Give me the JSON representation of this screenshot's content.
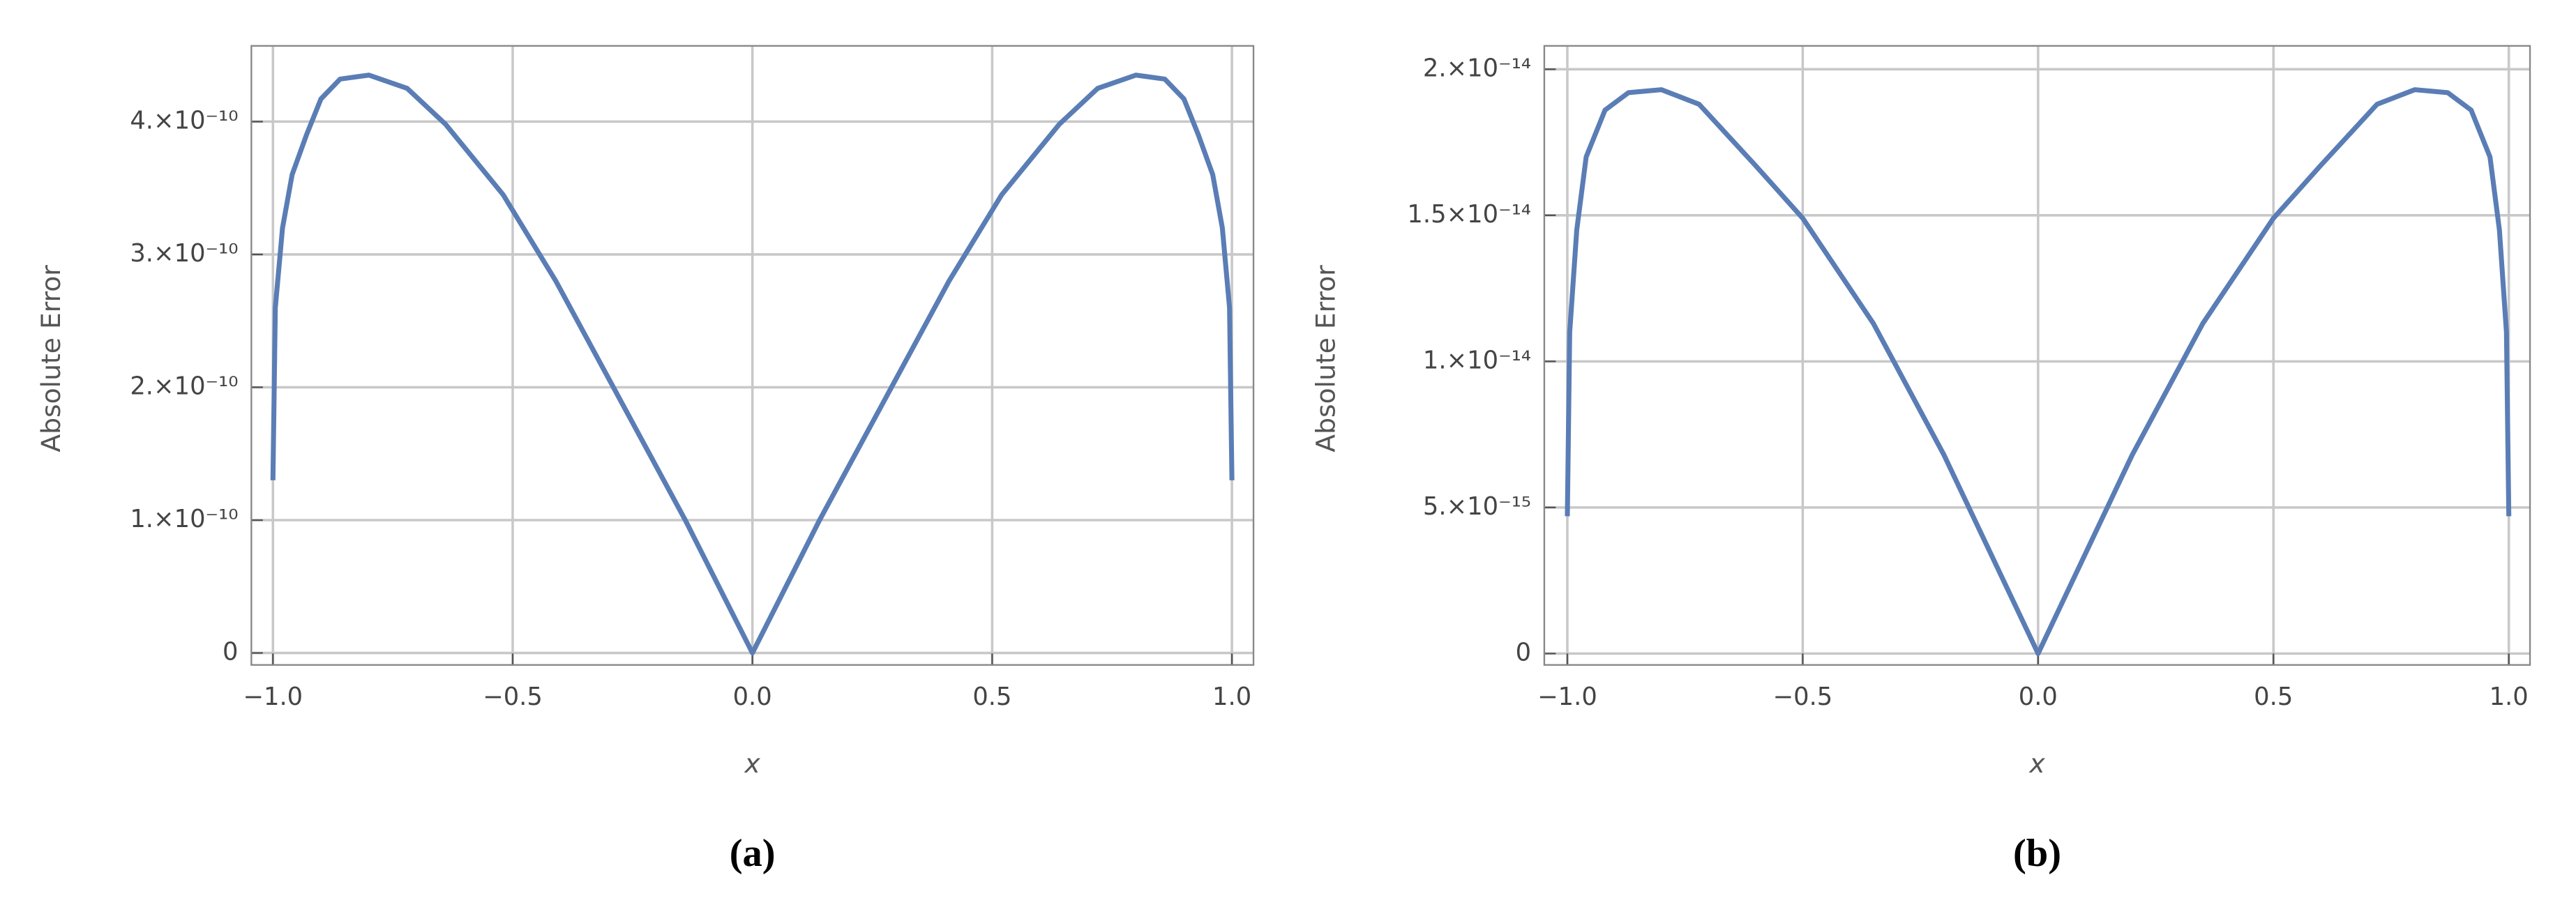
{
  "chart_data": [
    {
      "type": "line",
      "caption": "(a)",
      "ylabel": "Absolute Error",
      "xlabel": "x",
      "color": "#5a7db5",
      "grid": true,
      "xlim": [
        -1.045,
        1.045
      ],
      "ylim": [
        -9e-12,
        4.57e-10
      ],
      "xticks": [
        {
          "value": -1,
          "label": "−1.0"
        },
        {
          "value": -0.5,
          "label": "−0.5"
        },
        {
          "value": 0,
          "label": "0.0"
        },
        0.5,
        {
          "value": 1,
          "label": "1.0"
        }
      ],
      "yticks": [
        0,
        {
          "value": 1e-10,
          "label": "1.×10⁻¹⁰"
        },
        {
          "value": 2e-10,
          "label": "2.×10⁻¹⁰"
        },
        {
          "value": 3e-10,
          "label": "3.×10⁻¹⁰"
        },
        {
          "value": 4e-10,
          "label": "4.×10⁻¹⁰"
        }
      ],
      "x": [
        -1,
        -0.995,
        -0.98,
        -0.96,
        -0.93,
        -0.9,
        -0.86,
        -0.8,
        -0.72,
        -0.64,
        -0.52,
        -0.41,
        -0.29,
        -0.14,
        0,
        0.14,
        0.29,
        0.41,
        0.52,
        0.64,
        0.72,
        0.8,
        0.86,
        0.9,
        0.93,
        0.96,
        0.98,
        0.995,
        1
      ],
      "values": [
        1.3e-10,
        2.6e-10,
        3.2e-10,
        3.6e-10,
        3.9e-10,
        4.17e-10,
        4.32e-10,
        4.35e-10,
        4.25e-10,
        3.98e-10,
        3.45e-10,
        2.8e-10,
        2e-10,
        1e-10,
        0,
        1e-10,
        2e-10,
        2.8e-10,
        3.45e-10,
        3.98e-10,
        4.25e-10,
        4.35e-10,
        4.32e-10,
        4.17e-10,
        3.9e-10,
        3.6e-10,
        3.2e-10,
        2.6e-10,
        1.3e-10
      ]
    },
    {
      "type": "line",
      "caption": "(b)",
      "ylabel": "Absolute Error",
      "xlabel": "x",
      "color": "#5a7db5",
      "grid": true,
      "xlim": [
        -1.049,
        1.045
      ],
      "ylim": [
        -3.9e-16,
        2.08e-14
      ],
      "xticks": [
        {
          "value": -1,
          "label": "−1.0"
        },
        {
          "value": -0.5,
          "label": "−0.5"
        },
        {
          "value": 0,
          "label": "0.0"
        },
        0.5,
        {
          "value": 1,
          "label": "1.0"
        }
      ],
      "yticks": [
        0,
        {
          "value": 5e-15,
          "label": "5.×10⁻¹⁵"
        },
        {
          "value": 1e-14,
          "label": "1.×10⁻¹⁴"
        },
        {
          "value": 1.5e-14,
          "label": "1.5×10⁻¹⁴"
        },
        {
          "value": 2e-14,
          "label": "2.×10⁻¹⁴"
        }
      ],
      "x": [
        -1,
        -0.995,
        -0.98,
        -0.96,
        -0.92,
        -0.87,
        -0.8,
        -0.72,
        -0.6,
        -0.5,
        -0.35,
        -0.2,
        0,
        0.2,
        0.35,
        0.5,
        0.6,
        0.72,
        0.8,
        0.87,
        0.92,
        0.96,
        0.98,
        0.995,
        1
      ],
      "values": [
        4.7e-15,
        1.1e-14,
        1.45e-14,
        1.7e-14,
        1.86e-14,
        1.92e-14,
        1.93e-14,
        1.88e-14,
        1.67e-14,
        1.49e-14,
        1.13e-14,
        6.8e-15,
        0,
        6.8e-15,
        1.13e-14,
        1.49e-14,
        1.67e-14,
        1.88e-14,
        1.93e-14,
        1.92e-14,
        1.86e-14,
        1.7e-14,
        1.45e-14,
        1.1e-14,
        4.7e-15
      ]
    }
  ]
}
